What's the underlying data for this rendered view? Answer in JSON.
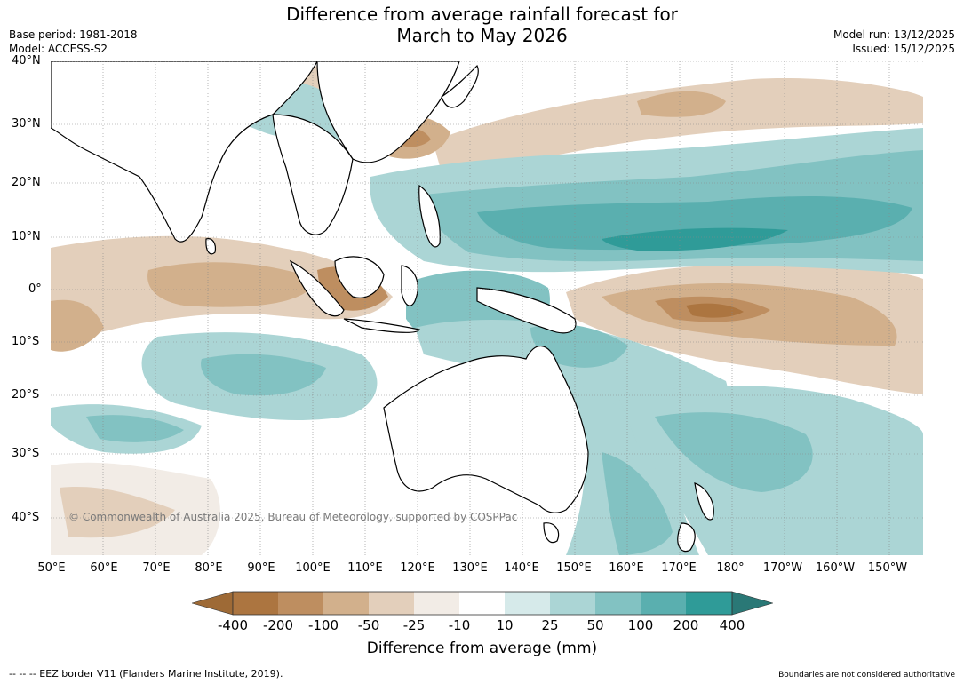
{
  "title": {
    "line1": "Difference from average rainfall forecast for",
    "line2": "March to May 2026"
  },
  "meta": {
    "base_period": "Base period: 1981-2018",
    "model": "Model: ACCESS-S2",
    "model_run": "Model run: 13/12/2025",
    "issued": "Issued: 15/12/2025"
  },
  "map": {
    "lat_labels": [
      "40°N",
      "30°N",
      "20°N",
      "10°N",
      "0°",
      "10°S",
      "20°S",
      "30°S",
      "40°S"
    ],
    "lon_labels": [
      "50°E",
      "60°E",
      "70°E",
      "80°E",
      "90°E",
      "100°E",
      "110°E",
      "120°E",
      "130°E",
      "140°E",
      "150°E",
      "160°E",
      "170°E",
      "180°",
      "170°W",
      "160°W",
      "150°W"
    ],
    "copyright": "© Commonwealth of Australia 2025, Bureau of Meteorology, supported by COSPPac"
  },
  "colorbar": {
    "labels": [
      "-400",
      "-200",
      "-100",
      "-50",
      "-25",
      "-10",
      "10",
      "25",
      "50",
      "100",
      "200",
      "400"
    ],
    "colors": [
      "#9e6a36",
      "#ac7540",
      "#be8e60",
      "#d2b08c",
      "#e3cfbb",
      "#f2ece6",
      "#ffffff",
      "#d6eaea",
      "#abd5d5",
      "#82c2c2",
      "#5aafaf",
      "#2f9b98",
      "#2a7876"
    ],
    "title": "Difference from average (mm)"
  },
  "footer": {
    "eez": "--  --  -- EEZ border V11 (Flanders Marine Institute, 2019).",
    "boundaries": "Boundaries are not considered authoritative"
  }
}
